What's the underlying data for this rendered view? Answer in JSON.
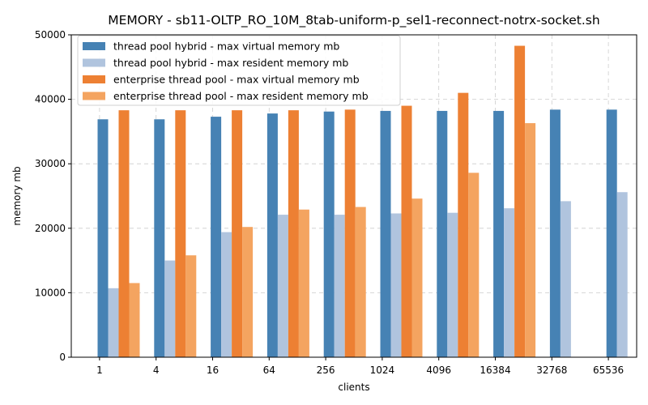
{
  "chart_data": {
    "type": "bar",
    "title": "MEMORY - sb11-OLTP_RO_10M_8tab-uniform-p_sel1-reconnect-notrx-socket.sh",
    "xlabel": "clients",
    "ylabel": "memory mb",
    "ylim": [
      0,
      50000
    ],
    "yticks": [
      0,
      10000,
      20000,
      30000,
      40000,
      50000
    ],
    "grid": true,
    "legend_position": "top-left",
    "categories": [
      "1",
      "4",
      "16",
      "64",
      "256",
      "1024",
      "4096",
      "16384",
      "32768",
      "65536"
    ],
    "series": [
      {
        "name": "thread pool hybrid - max virtual memory mb",
        "color": "#4682b4",
        "values": [
          36900,
          36900,
          37300,
          37800,
          38100,
          38200,
          38200,
          38200,
          38400,
          38400
        ]
      },
      {
        "name": "thread pool hybrid - max resident memory mb",
        "color": "#b0c4de",
        "values": [
          10700,
          15000,
          19400,
          22100,
          22100,
          22300,
          22400,
          23100,
          24200,
          25600
        ]
      },
      {
        "name": "enterprise thread pool - max virtual memory mb",
        "color": "#ed8033",
        "values": [
          38300,
          38300,
          38300,
          38300,
          38400,
          39000,
          41000,
          48300,
          null,
          null
        ]
      },
      {
        "name": "enterprise thread pool - max resident memory mb",
        "color": "#f4a460",
        "values": [
          11500,
          15800,
          20200,
          22900,
          23300,
          24600,
          28600,
          36300,
          null,
          null
        ]
      }
    ]
  }
}
